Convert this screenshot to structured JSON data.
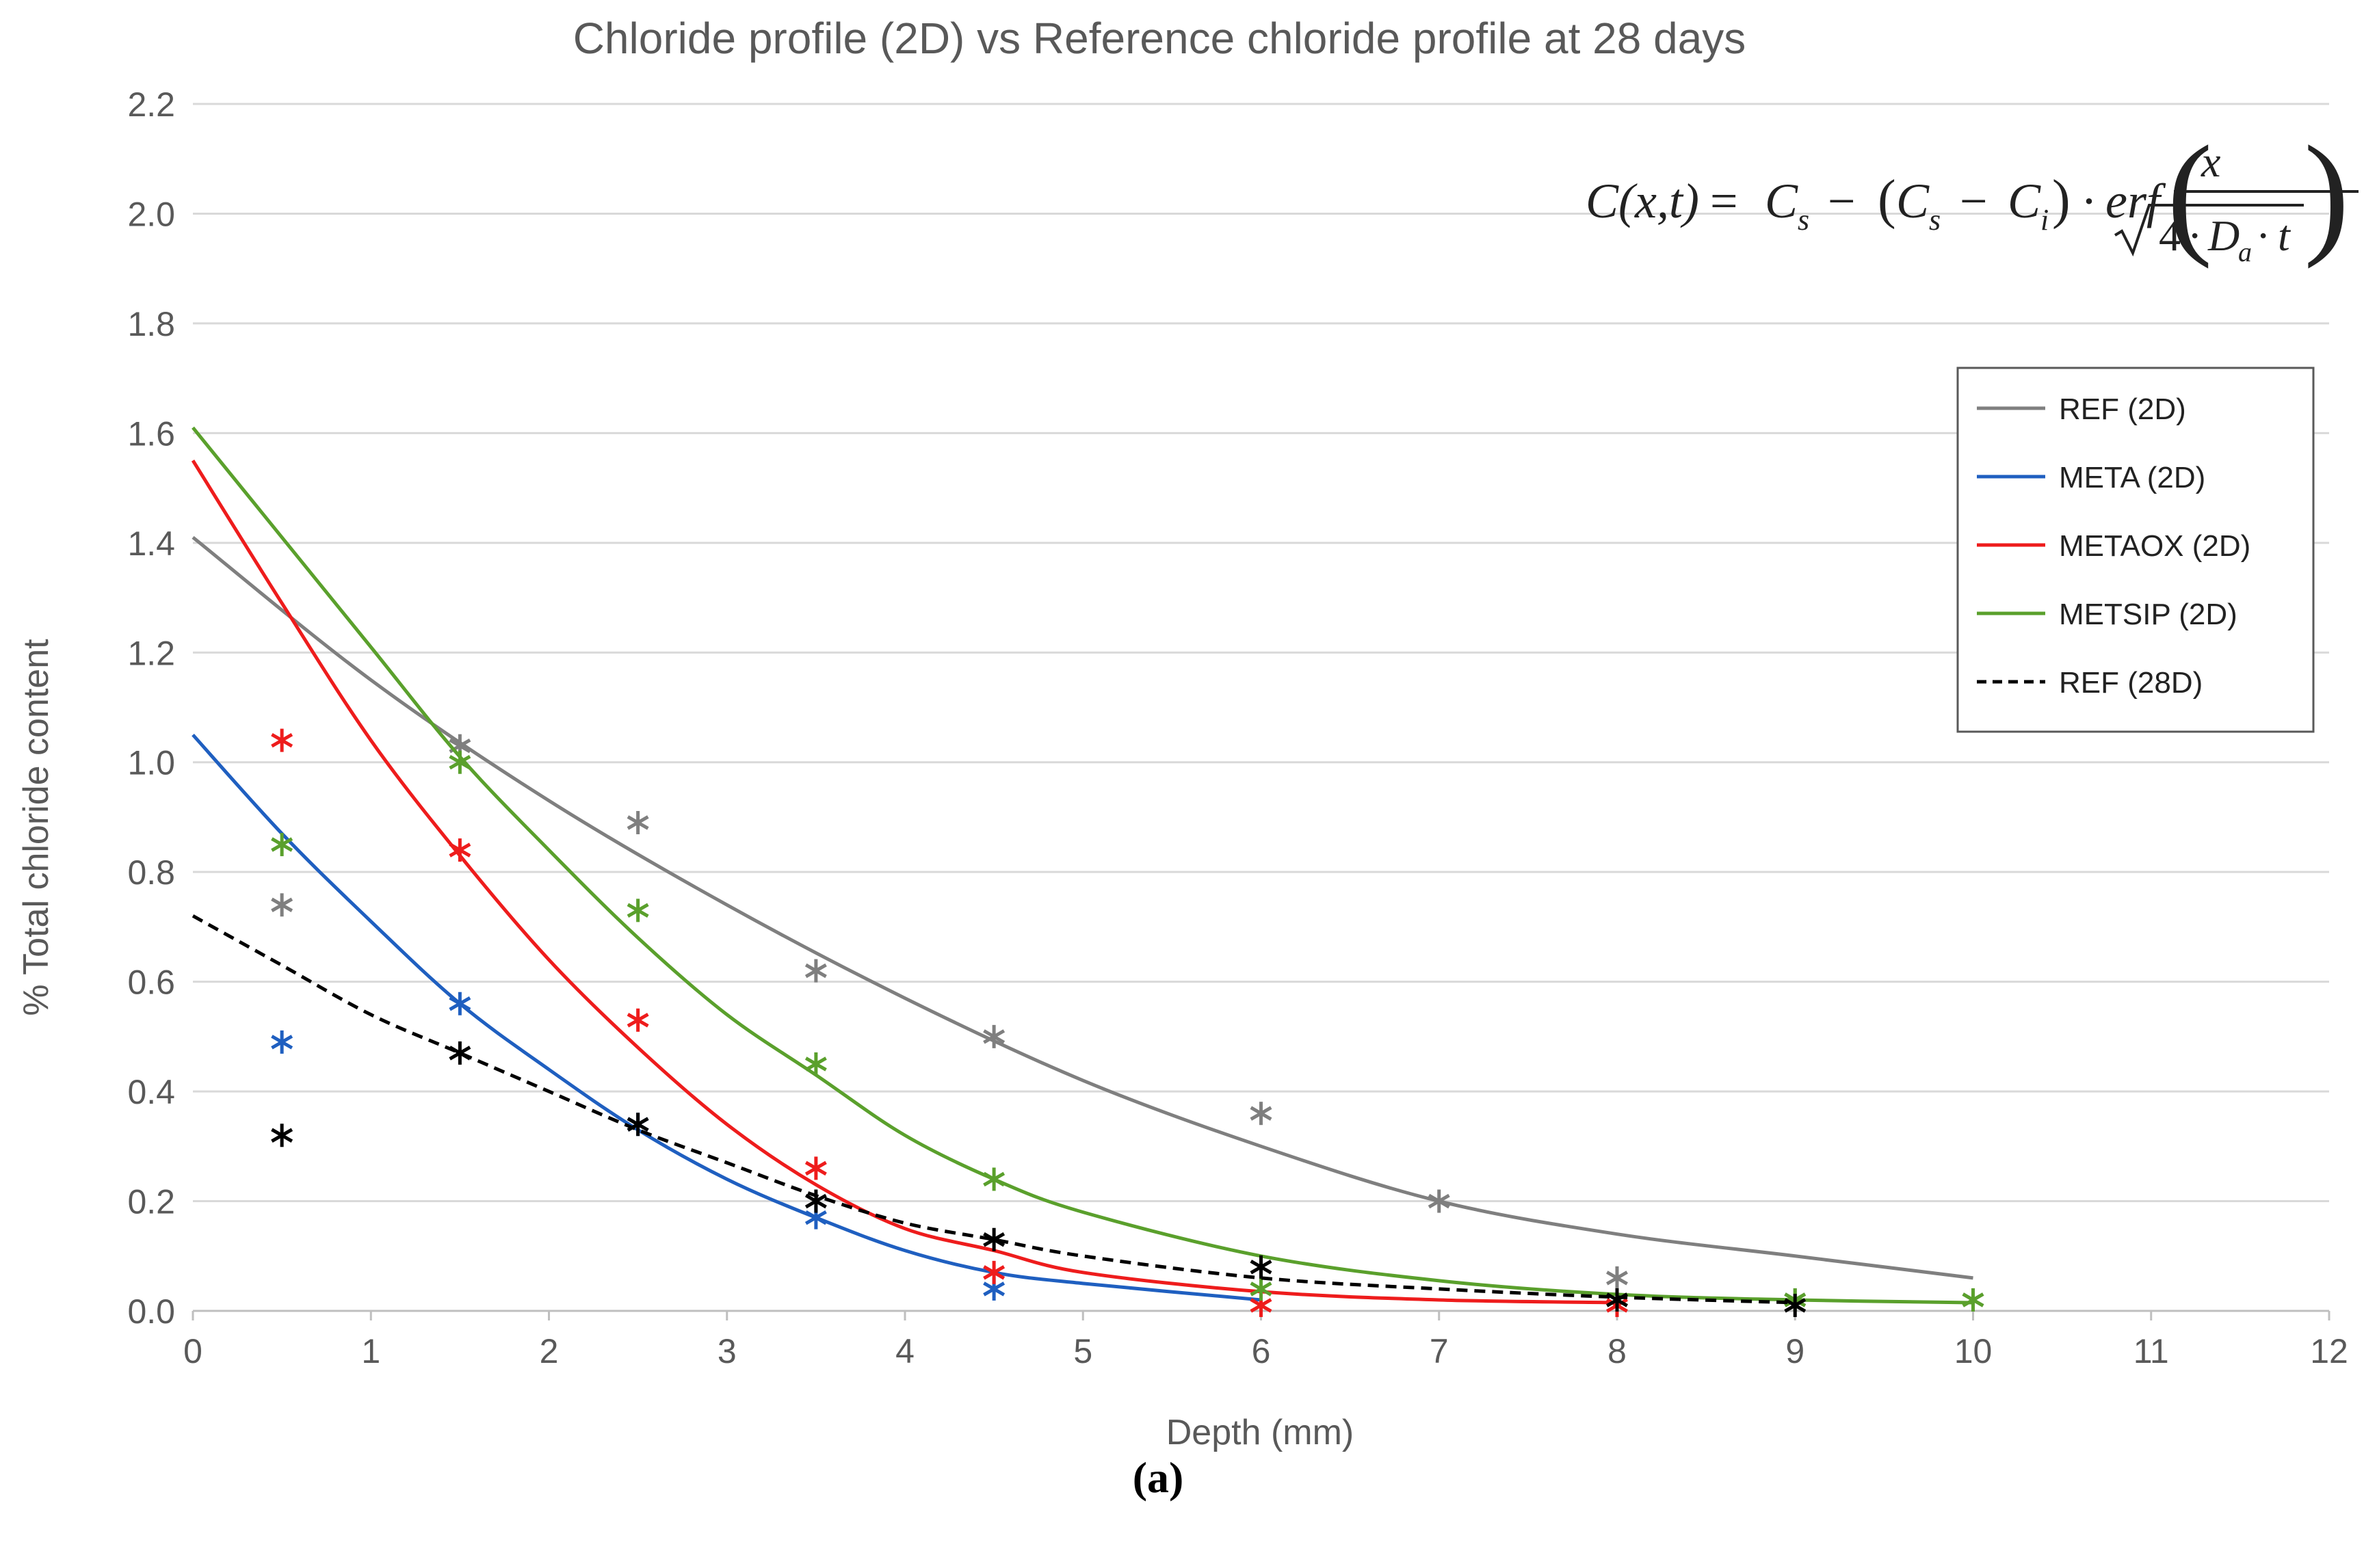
{
  "chart_data": {
    "type": "scatter",
    "title": "Chloride profile (2D) vs Reference chloride profile at 28 days",
    "xlabel": "Depth (mm)",
    "ylabel": "% Total chloride content",
    "xlim": [
      0,
      12
    ],
    "ylim": [
      0,
      2.2
    ],
    "xticks": [
      "0",
      "1",
      "2",
      "3",
      "4",
      "5",
      "6",
      "7",
      "8",
      "9",
      "10",
      "11",
      "12"
    ],
    "yticks": [
      "0.0",
      "0.2",
      "0.4",
      "0.6",
      "0.8",
      "1.0",
      "1.2",
      "1.4",
      "1.6",
      "1.8",
      "2.0",
      "2.2"
    ],
    "grid": true,
    "legend_position": "right",
    "caption": "(a)",
    "equation": {
      "lhs": "C(x,t)",
      "eq": "=",
      "cs": "C",
      "s_sub": "s",
      "minus": "−",
      "ci": "C",
      "i_sub": "i",
      "dot": "·",
      "erf": "erf",
      "x": "x",
      "four": "4",
      "da": "D",
      "a_sub": "a",
      "t": "t"
    },
    "series": [
      {
        "name": "REF (2D)",
        "color": "#7f7f7f",
        "dash": "solid",
        "points": {
          "x": [
            0.5,
            1.5,
            2.5,
            3.5,
            4.5,
            6,
            7,
            8,
            9,
            10
          ],
          "y": [
            0.74,
            1.03,
            0.89,
            0.62,
            0.5,
            0.36,
            0.2,
            0.06,
            0.02,
            0.02
          ]
        },
        "fit": {
          "x": [
            0,
            1,
            2,
            3,
            4,
            5,
            6,
            7,
            8,
            9,
            10
          ],
          "y": [
            1.41,
            1.15,
            0.93,
            0.74,
            0.57,
            0.42,
            0.3,
            0.2,
            0.14,
            0.1,
            0.06
          ]
        }
      },
      {
        "name": "META (2D)",
        "color": "#1f5fc0",
        "dash": "solid",
        "points": {
          "x": [
            0.5,
            1.5,
            2.5,
            3.5,
            4.5
          ],
          "y": [
            0.49,
            0.56,
            0.34,
            0.17,
            0.04
          ]
        },
        "fit": {
          "x": [
            0,
            0.5,
            1,
            1.5,
            2,
            2.5,
            3,
            3.5,
            4,
            4.5,
            5,
            6
          ],
          "y": [
            1.05,
            0.87,
            0.71,
            0.56,
            0.44,
            0.33,
            0.24,
            0.17,
            0.11,
            0.07,
            0.05,
            0.02
          ]
        }
      },
      {
        "name": "METAOX (2D)",
        "color": "#ee1c1c",
        "dash": "solid",
        "points": {
          "x": [
            0.5,
            1.5,
            2.5,
            3.5,
            4.5,
            6,
            8
          ],
          "y": [
            1.04,
            0.84,
            0.53,
            0.26,
            0.07,
            0.01,
            0.01
          ]
        },
        "fit": {
          "x": [
            0,
            0.5,
            1,
            1.5,
            2,
            2.5,
            3,
            3.5,
            4,
            4.5,
            5,
            6,
            7,
            8
          ],
          "y": [
            1.55,
            1.29,
            1.04,
            0.83,
            0.64,
            0.48,
            0.34,
            0.23,
            0.15,
            0.11,
            0.07,
            0.035,
            0.02,
            0.015
          ]
        }
      },
      {
        "name": "METSIP (2D)",
        "color": "#5aa02c",
        "dash": "solid",
        "points": {
          "x": [
            0.5,
            1.5,
            2.5,
            3.5,
            4.5,
            6,
            8,
            9,
            10
          ],
          "y": [
            0.85,
            1.0,
            0.73,
            0.45,
            0.24,
            0.04,
            0.02,
            0.02,
            0.02
          ]
        },
        "fit": {
          "x": [
            0,
            0.5,
            1,
            1.5,
            2,
            2.5,
            3,
            3.5,
            4,
            4.5,
            5,
            6,
            7,
            8,
            9,
            10
          ],
          "y": [
            1.61,
            1.41,
            1.21,
            1.01,
            0.84,
            0.68,
            0.54,
            0.43,
            0.32,
            0.24,
            0.18,
            0.1,
            0.055,
            0.03,
            0.02,
            0.015
          ]
        }
      },
      {
        "name": "REF (28D)",
        "color": "#000000",
        "dash": "dashed",
        "points": {
          "x": [
            0.5,
            1.5,
            2.5,
            3.5,
            4.5,
            6,
            8,
            9
          ],
          "y": [
            0.32,
            0.47,
            0.34,
            0.2,
            0.13,
            0.08,
            0.02,
            0.01
          ]
        },
        "fit": {
          "x": [
            0,
            0.5,
            1,
            1.5,
            2,
            2.5,
            3,
            3.5,
            4,
            4.5,
            5,
            6,
            7,
            8,
            9
          ],
          "y": [
            0.72,
            0.63,
            0.54,
            0.47,
            0.4,
            0.33,
            0.27,
            0.21,
            0.16,
            0.13,
            0.1,
            0.06,
            0.04,
            0.025,
            0.015
          ]
        }
      }
    ]
  }
}
